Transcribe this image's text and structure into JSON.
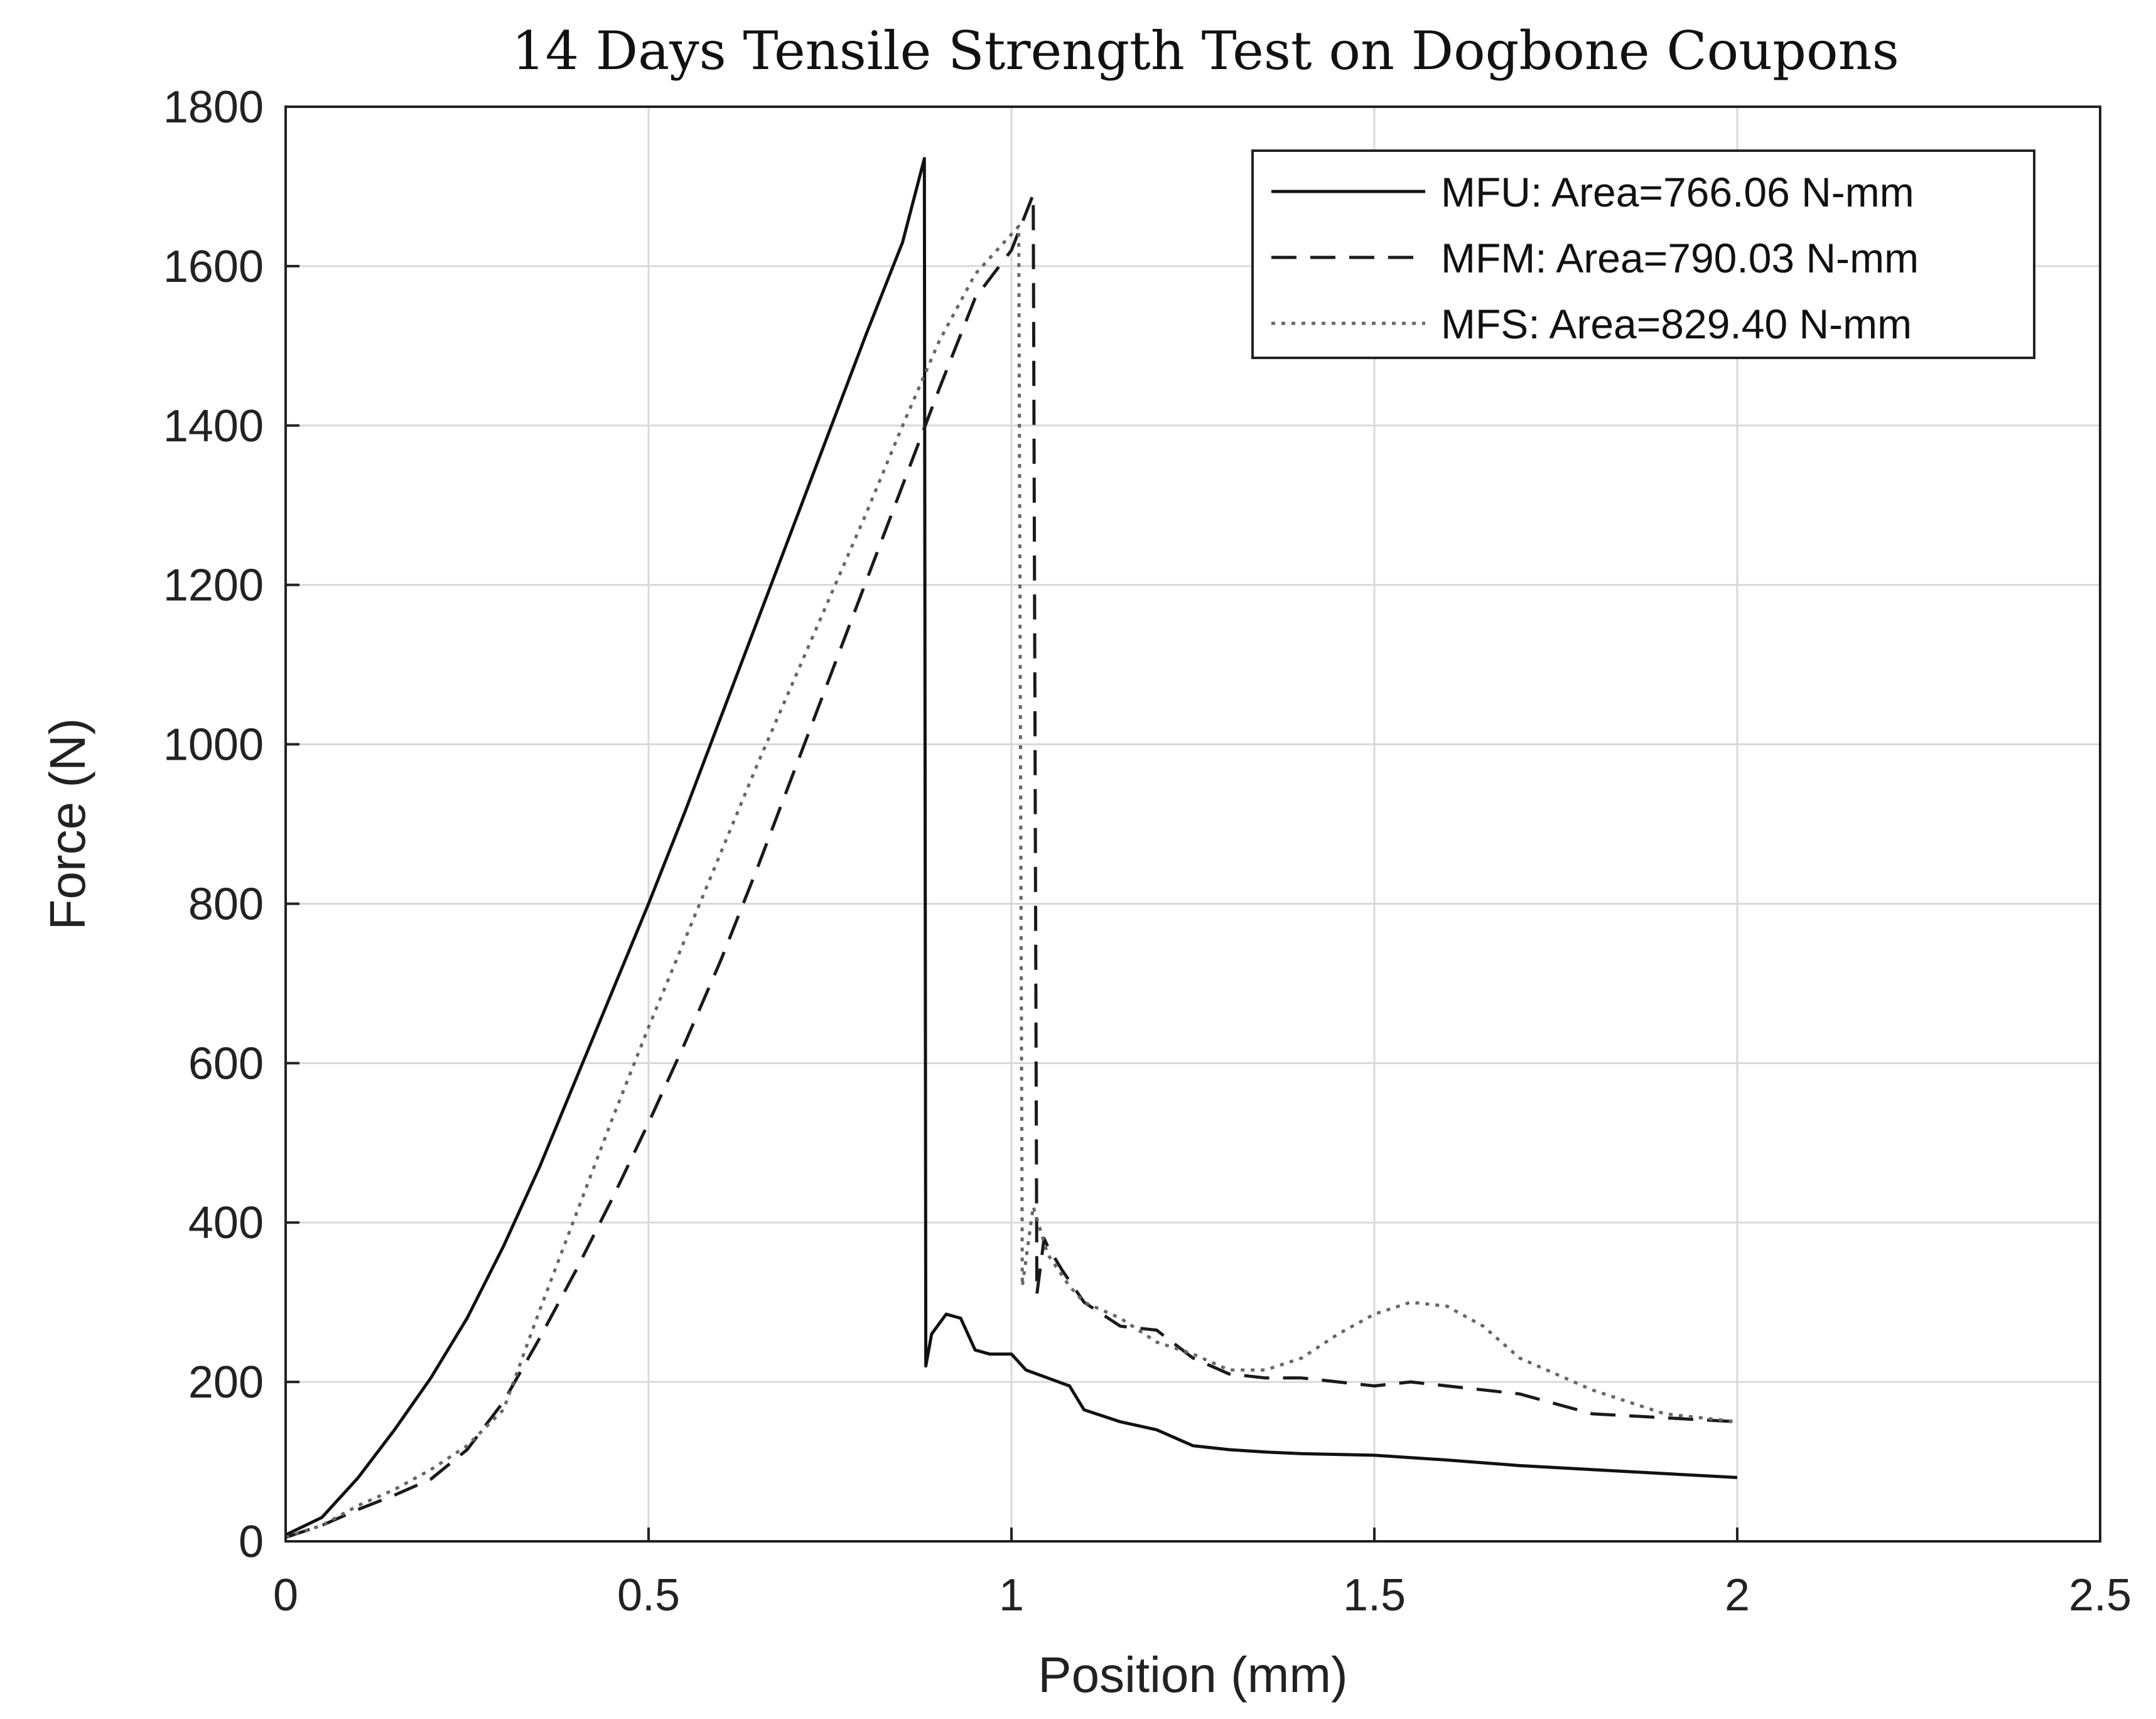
{
  "chart_data": {
    "type": "line",
    "title": "14 Days Tensile Strength Test on Dogbone Coupons",
    "xlabel": "Position (mm)",
    "ylabel": "Force (N)",
    "xlim": [
      0,
      2.5
    ],
    "ylim": [
      0,
      1800
    ],
    "xticks": [
      0,
      0.5,
      1,
      1.5,
      2,
      2.5
    ],
    "xtick_labels": [
      "0",
      "0.5",
      "1",
      "1.5",
      "2",
      "2.5"
    ],
    "yticks": [
      0,
      200,
      400,
      600,
      800,
      1000,
      1200,
      1400,
      1600,
      1800
    ],
    "ytick_labels": [
      "0",
      "200",
      "400",
      "600",
      "800",
      "1000",
      "1200",
      "1400",
      "1600",
      "1800"
    ],
    "grid": true,
    "legend_position": "top-right",
    "series": [
      {
        "name": "MFU: Area=766.06 N-mm",
        "style": "solid",
        "x": [
          0,
          0.05,
          0.1,
          0.15,
          0.2,
          0.25,
          0.3,
          0.35,
          0.4,
          0.45,
          0.5,
          0.55,
          0.6,
          0.65,
          0.7,
          0.75,
          0.8,
          0.85,
          0.88,
          0.882,
          0.89,
          0.91,
          0.93,
          0.95,
          0.97,
          1.0,
          1.02,
          1.05,
          1.08,
          1.1,
          1.15,
          1.2,
          1.25,
          1.3,
          1.35,
          1.4,
          1.5,
          1.6,
          1.7,
          1.8,
          1.9,
          2.0
        ],
        "y": [
          8,
          30,
          80,
          140,
          205,
          280,
          370,
          470,
          580,
          690,
          800,
          915,
          1035,
          1155,
          1275,
          1395,
          1515,
          1630,
          1735,
          220,
          260,
          285,
          280,
          240,
          235,
          235,
          215,
          205,
          195,
          165,
          150,
          140,
          120,
          115,
          112,
          110,
          108,
          102,
          95,
          90,
          85,
          80
        ]
      },
      {
        "name": "MFM: Area=790.03 N-mm",
        "style": "dashed",
        "x": [
          0,
          0.05,
          0.1,
          0.15,
          0.2,
          0.25,
          0.3,
          0.35,
          0.4,
          0.45,
          0.5,
          0.55,
          0.6,
          0.65,
          0.7,
          0.75,
          0.8,
          0.85,
          0.9,
          0.95,
          1.0,
          1.03,
          1.035,
          1.045,
          1.05,
          1.07,
          1.1,
          1.15,
          1.2,
          1.25,
          1.3,
          1.35,
          1.4,
          1.45,
          1.5,
          1.55,
          1.6,
          1.7,
          1.8,
          1.9,
          2.0
        ],
        "y": [
          5,
          20,
          40,
          58,
          78,
          115,
          175,
          255,
          340,
          430,
          525,
          625,
          730,
          845,
          965,
          1085,
          1205,
          1325,
          1445,
          1560,
          1620,
          1690,
          310,
          380,
          370,
          340,
          300,
          270,
          265,
          230,
          210,
          205,
          205,
          200,
          195,
          200,
          195,
          185,
          160,
          155,
          150
        ]
      },
      {
        "name": "MFS: Area=829.40 N-mm",
        "style": "dotted",
        "x": [
          0,
          0.05,
          0.1,
          0.15,
          0.2,
          0.25,
          0.3,
          0.35,
          0.4,
          0.45,
          0.5,
          0.55,
          0.6,
          0.65,
          0.7,
          0.75,
          0.8,
          0.85,
          0.9,
          0.95,
          1.0,
          1.01,
          1.015,
          1.03,
          1.05,
          1.08,
          1.1,
          1.15,
          1.2,
          1.25,
          1.3,
          1.35,
          1.4,
          1.45,
          1.5,
          1.55,
          1.6,
          1.65,
          1.7,
          1.8,
          1.9,
          2.0
        ],
        "y": [
          5,
          20,
          45,
          65,
          90,
          120,
          165,
          290,
          410,
          530,
          645,
          755,
          865,
          975,
          1080,
          1185,
          1290,
          1400,
          1505,
          1590,
          1640,
          1650,
          320,
          420,
          360,
          320,
          300,
          280,
          250,
          235,
          215,
          215,
          230,
          260,
          285,
          300,
          295,
          270,
          230,
          190,
          160,
          150
        ]
      }
    ]
  }
}
